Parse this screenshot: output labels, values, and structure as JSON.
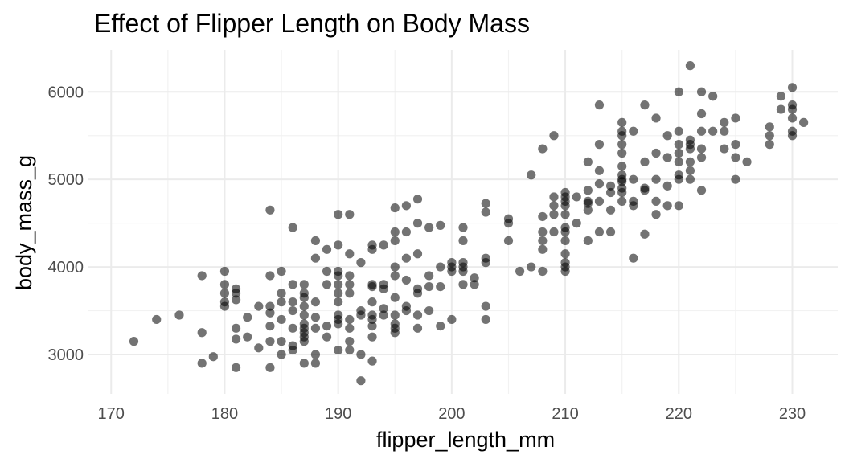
{
  "chart_data": {
    "type": "scatter",
    "title": "Effect of Flipper Length on Body Mass",
    "xlabel": "flipper_length_mm",
    "ylabel": "body_mass_g",
    "xlim": [
      168,
      234
    ],
    "ylim": [
      2550,
      6480
    ],
    "x_ticks": [
      170,
      180,
      190,
      200,
      210,
      220,
      230
    ],
    "y_ticks": [
      3000,
      4000,
      5000,
      6000
    ],
    "grid": true,
    "point_color": "#000000",
    "point_opacity": 0.55,
    "points": [
      [
        172,
        3150
      ],
      [
        174,
        3400
      ],
      [
        176,
        3450
      ],
      [
        178,
        3250
      ],
      [
        178,
        3900
      ],
      [
        178,
        2900
      ],
      [
        179,
        2975
      ],
      [
        180,
        3950
      ],
      [
        180,
        3800
      ],
      [
        180,
        3700
      ],
      [
        180,
        3600
      ],
      [
        180,
        3550
      ],
      [
        181,
        3750
      ],
      [
        181,
        3700
      ],
      [
        181,
        3625
      ],
      [
        181,
        3300
      ],
      [
        181,
        3175
      ],
      [
        181,
        2850
      ],
      [
        182,
        3200
      ],
      [
        182,
        3425
      ],
      [
        183,
        3550
      ],
      [
        183,
        3075
      ],
      [
        184,
        4650
      ],
      [
        184,
        3900
      ],
      [
        184,
        3550
      ],
      [
        184,
        3475
      ],
      [
        184,
        3325
      ],
      [
        184,
        3150
      ],
      [
        184,
        2850
      ],
      [
        185,
        3950
      ],
      [
        185,
        3700
      ],
      [
        185,
        3600
      ],
      [
        185,
        3400
      ],
      [
        185,
        3150
      ],
      [
        185,
        3000
      ],
      [
        186,
        4450
      ],
      [
        186,
        3800
      ],
      [
        186,
        3600
      ],
      [
        186,
        3500
      ],
      [
        186,
        3300
      ],
      [
        186,
        3100
      ],
      [
        186,
        3050
      ],
      [
        187,
        3800
      ],
      [
        187,
        3700
      ],
      [
        187,
        3650
      ],
      [
        187,
        3550
      ],
      [
        187,
        3450
      ],
      [
        187,
        3350
      ],
      [
        187,
        3300
      ],
      [
        187,
        3250
      ],
      [
        187,
        3200
      ],
      [
        187,
        3150
      ],
      [
        187,
        2900
      ],
      [
        188,
        4300
      ],
      [
        188,
        4100
      ],
      [
        188,
        3600
      ],
      [
        188,
        3425
      ],
      [
        188,
        3300
      ],
      [
        188,
        3000
      ],
      [
        188,
        2900
      ],
      [
        189,
        4200
      ],
      [
        189,
        3950
      ],
      [
        189,
        3800
      ],
      [
        189,
        3325
      ],
      [
        189,
        3200
      ],
      [
        190,
        4600
      ],
      [
        190,
        4250
      ],
      [
        190,
        3950
      ],
      [
        190,
        3900
      ],
      [
        190,
        3800
      ],
      [
        190,
        3700
      ],
      [
        190,
        3600
      ],
      [
        190,
        3450
      ],
      [
        190,
        3400
      ],
      [
        190,
        3350
      ],
      [
        190,
        3050
      ],
      [
        191,
        4600
      ],
      [
        191,
        4150
      ],
      [
        191,
        3900
      ],
      [
        191,
        3800
      ],
      [
        191,
        3700
      ],
      [
        191,
        3400
      ],
      [
        191,
        3300
      ],
      [
        191,
        3150
      ],
      [
        191,
        3050
      ],
      [
        192,
        4050
      ],
      [
        192,
        3500
      ],
      [
        192,
        3450
      ],
      [
        192,
        3000
      ],
      [
        192,
        2700
      ],
      [
        193,
        4250
      ],
      [
        193,
        4200
      ],
      [
        193,
        3800
      ],
      [
        193,
        3775
      ],
      [
        193,
        3600
      ],
      [
        193,
        3450
      ],
      [
        193,
        3400
      ],
      [
        193,
        3325
      ],
      [
        193,
        3200
      ],
      [
        193,
        2925
      ],
      [
        194,
        4250
      ],
      [
        194,
        3800
      ],
      [
        194,
        3750
      ],
      [
        194,
        3525
      ],
      [
        194,
        3450
      ],
      [
        195,
        4675
      ],
      [
        195,
        4400
      ],
      [
        195,
        4300
      ],
      [
        195,
        4000
      ],
      [
        195,
        3900
      ],
      [
        195,
        3650
      ],
      [
        195,
        3450
      ],
      [
        195,
        3350
      ],
      [
        195,
        3300
      ],
      [
        195,
        3250
      ],
      [
        196,
        4700
      ],
      [
        196,
        4400
      ],
      [
        196,
        4100
      ],
      [
        196,
        3850
      ],
      [
        196,
        3550
      ],
      [
        196,
        3500
      ],
      [
        197,
        4775
      ],
      [
        197,
        4500
      ],
      [
        197,
        4150
      ],
      [
        197,
        3750
      ],
      [
        197,
        3700
      ],
      [
        197,
        3450
      ],
      [
        197,
        3300
      ],
      [
        198,
        4450
      ],
      [
        198,
        3900
      ],
      [
        198,
        3775
      ],
      [
        198,
        3500
      ],
      [
        199,
        4475
      ],
      [
        199,
        4000
      ],
      [
        199,
        3775
      ],
      [
        199,
        3325
      ],
      [
        200,
        4050
      ],
      [
        200,
        4000
      ],
      [
        200,
        3950
      ],
      [
        200,
        3400
      ],
      [
        201,
        4450
      ],
      [
        201,
        4300
      ],
      [
        201,
        4050
      ],
      [
        201,
        4000
      ],
      [
        201,
        3950
      ],
      [
        201,
        3800
      ],
      [
        202,
        3875
      ],
      [
        202,
        3800
      ],
      [
        203,
        4725
      ],
      [
        203,
        4625
      ],
      [
        203,
        4100
      ],
      [
        203,
        4050
      ],
      [
        203,
        3550
      ],
      [
        203,
        3400
      ],
      [
        205,
        4550
      ],
      [
        205,
        4500
      ],
      [
        205,
        4300
      ],
      [
        206,
        3950
      ],
      [
        207,
        5050
      ],
      [
        207,
        4000
      ],
      [
        208,
        5350
      ],
      [
        208,
        4575
      ],
      [
        208,
        4400
      ],
      [
        208,
        4300
      ],
      [
        208,
        4200
      ],
      [
        208,
        3950
      ],
      [
        209,
        5500
      ],
      [
        209,
        4800
      ],
      [
        209,
        4700
      ],
      [
        209,
        4600
      ],
      [
        209,
        4400
      ],
      [
        210,
        4850
      ],
      [
        210,
        4800
      ],
      [
        210,
        4750
      ],
      [
        210,
        4700
      ],
      [
        210,
        4600
      ],
      [
        210,
        4450
      ],
      [
        210,
        4400
      ],
      [
        210,
        4300
      ],
      [
        210,
        4150
      ],
      [
        210,
        4050
      ],
      [
        210,
        4000
      ],
      [
        210,
        3950
      ],
      [
        211,
        4800
      ],
      [
        211,
        4500
      ],
      [
        212,
        5200
      ],
      [
        212,
        4875
      ],
      [
        212,
        4750
      ],
      [
        212,
        4725
      ],
      [
        212,
        4650
      ],
      [
        212,
        4300
      ],
      [
        213,
        5850
      ],
      [
        213,
        5400
      ],
      [
        213,
        5100
      ],
      [
        213,
        4950
      ],
      [
        213,
        4750
      ],
      [
        213,
        4400
      ],
      [
        214,
        4925
      ],
      [
        214,
        4850
      ],
      [
        214,
        4650
      ],
      [
        214,
        4400
      ],
      [
        215,
        5650
      ],
      [
        215,
        5550
      ],
      [
        215,
        5500
      ],
      [
        215,
        5400
      ],
      [
        215,
        5300
      ],
      [
        215,
        5150
      ],
      [
        215,
        5050
      ],
      [
        215,
        5000
      ],
      [
        215,
        4975
      ],
      [
        215,
        4900
      ],
      [
        215,
        4850
      ],
      [
        215,
        4750
      ],
      [
        216,
        5550
      ],
      [
        216,
        5000
      ],
      [
        216,
        4750
      ],
      [
        216,
        4700
      ],
      [
        216,
        4100
      ],
      [
        217,
        5850
      ],
      [
        217,
        5200
      ],
      [
        217,
        4900
      ],
      [
        217,
        4875
      ],
      [
        217,
        4375
      ],
      [
        218,
        5700
      ],
      [
        218,
        5300
      ],
      [
        218,
        5000
      ],
      [
        218,
        4750
      ],
      [
        218,
        4600
      ],
      [
        219,
        5500
      ],
      [
        219,
        5250
      ],
      [
        219,
        4925
      ],
      [
        219,
        4700
      ],
      [
        220,
        6000
      ],
      [
        220,
        5550
      ],
      [
        220,
        5400
      ],
      [
        220,
        5300
      ],
      [
        220,
        5200
      ],
      [
        220,
        5050
      ],
      [
        220,
        5000
      ],
      [
        220,
        4700
      ],
      [
        221,
        6300
      ],
      [
        221,
        5450
      ],
      [
        221,
        5400
      ],
      [
        221,
        5350
      ],
      [
        221,
        5200
      ],
      [
        221,
        5100
      ],
      [
        221,
        5000
      ],
      [
        222,
        6000
      ],
      [
        222,
        5750
      ],
      [
        222,
        5550
      ],
      [
        222,
        5350
      ],
      [
        222,
        5250
      ],
      [
        222,
        4875
      ],
      [
        223,
        5950
      ],
      [
        223,
        5550
      ],
      [
        224,
        5650
      ],
      [
        224,
        5550
      ],
      [
        224,
        5350
      ],
      [
        225,
        5700
      ],
      [
        225,
        5400
      ],
      [
        225,
        5250
      ],
      [
        225,
        5000
      ],
      [
        226,
        5200
      ],
      [
        228,
        5600
      ],
      [
        228,
        5500
      ],
      [
        228,
        5400
      ],
      [
        229,
        5950
      ],
      [
        229,
        5800
      ],
      [
        230,
        6050
      ],
      [
        230,
        5850
      ],
      [
        230,
        5800
      ],
      [
        230,
        5700
      ],
      [
        230,
        5550
      ],
      [
        230,
        5500
      ],
      [
        231,
        5650
      ]
    ]
  }
}
